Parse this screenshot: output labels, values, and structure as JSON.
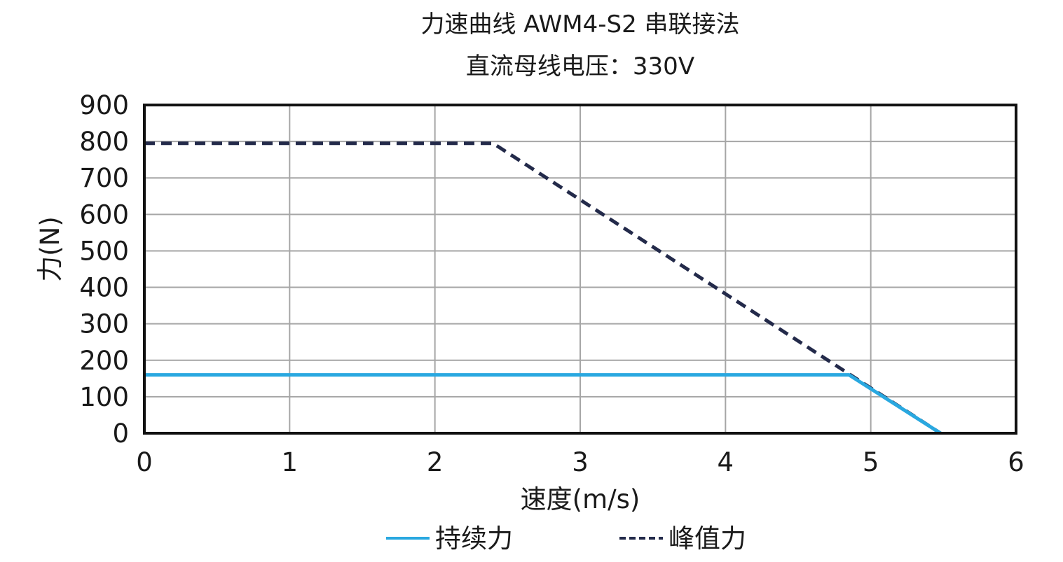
{
  "chart_data": {
    "type": "line",
    "title": "力速曲线 AWM4-S2 串联接法",
    "subtitle": "直流母线电压：330V",
    "xlabel": "速度(m/s)",
    "ylabel": "力(N)",
    "xlim": [
      0,
      6
    ],
    "ylim": [
      0,
      900
    ],
    "x_ticks": [
      0,
      1,
      2,
      3,
      4,
      5,
      6
    ],
    "y_ticks": [
      0,
      100,
      200,
      300,
      400,
      500,
      600,
      700,
      800,
      900
    ],
    "grid": true,
    "legend_position": "bottom",
    "series": [
      {
        "name": "持续力",
        "style": "solid",
        "color": "#29a8e0",
        "points": [
          [
            0,
            160
          ],
          [
            4.85,
            160
          ],
          [
            5.48,
            0
          ]
        ]
      },
      {
        "name": "峰值力",
        "style": "dashed",
        "color": "#232a4a",
        "points": [
          [
            0,
            795
          ],
          [
            2.4,
            795
          ],
          [
            5.48,
            0
          ]
        ]
      }
    ]
  }
}
